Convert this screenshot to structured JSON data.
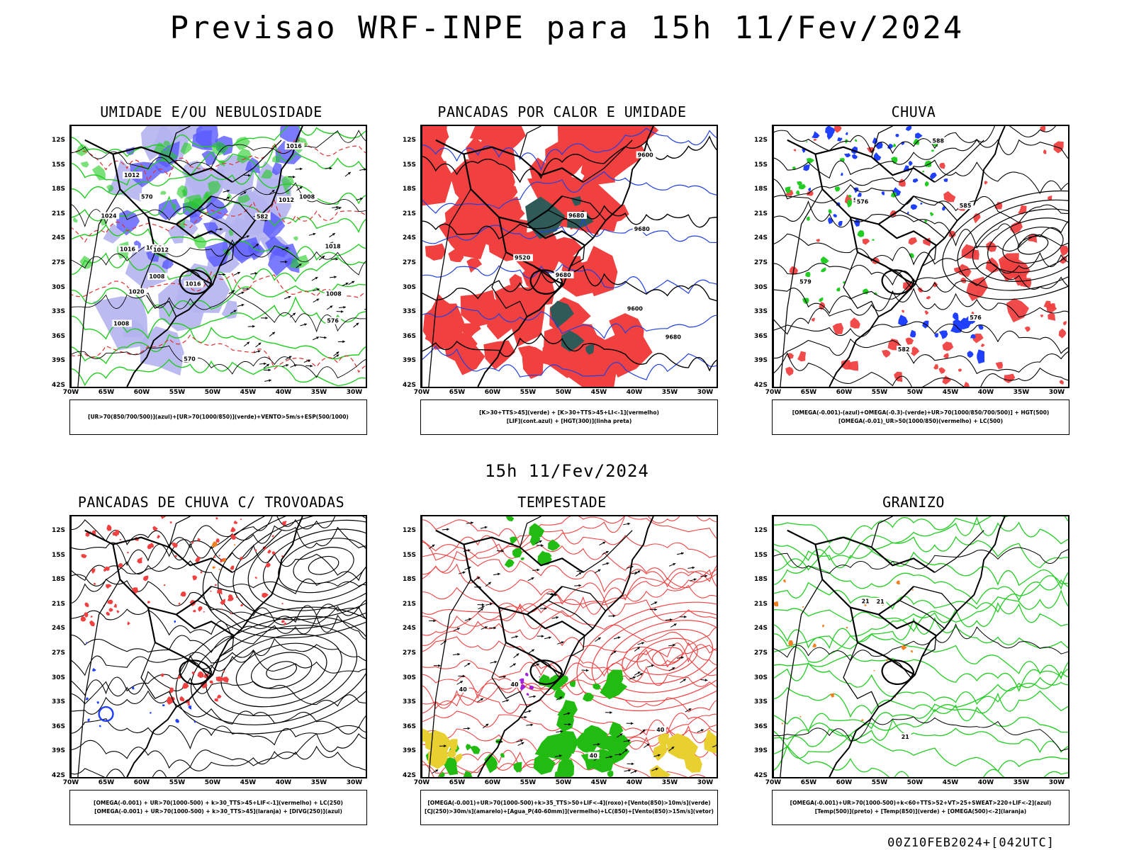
{
  "main_title": "Previsao WRF-INPE  para 15h 11/Fev/2024",
  "mid_title": "15h 11/Fev/2024",
  "footer": "00Z10FEB2024+[042UTC]",
  "lat_labels": [
    "12S",
    "15S",
    "18S",
    "21S",
    "24S",
    "27S",
    "30S",
    "33S",
    "36S",
    "39S",
    "42S"
  ],
  "lon_labels": [
    "70W",
    "65W",
    "60W",
    "55W",
    "50W",
    "45W",
    "40W",
    "35W",
    "30W"
  ],
  "panels": [
    {
      "id": "umidade",
      "title": "UMIDADE E/OU NEBULOSIDADE",
      "legend": [
        "[UR>70(850/700/500)](azul)+[UR>70(1000/850)](verde)+VENTO>5m/s+ESP(500/1000)"
      ],
      "contour_labels": [
        "1016",
        "1016",
        "1012",
        "1008",
        "1012",
        "1008",
        "1016",
        "1008",
        "1012",
        "1016",
        "1020",
        "1024",
        "1008",
        "1018",
        "570",
        "576",
        "582",
        "570"
      ],
      "colors": {
        "blue": "#5a5aff",
        "light_blue": "#b4b4f0",
        "green": "#22cc22",
        "red": "#e03030"
      }
    },
    {
      "id": "pancadas-calor",
      "title": "PANCADAS POR CALOR E UMIDADE",
      "legend": [
        "[K>30+TTS>45](verde) + [K>30+TTS>45+LI<-1](vermelho)",
        "[LIF](cont.azul) + [HGT(300)](linha preta)"
      ],
      "contour_labels": [
        "9680",
        "9680",
        "9680",
        "9600",
        "9680",
        "9600",
        "9520"
      ],
      "colors": {
        "red": "#f04040",
        "dark_teal": "#2f5a58",
        "blue": "#2040e0"
      }
    },
    {
      "id": "chuva",
      "title": "CHUVA",
      "legend": [
        "[OMEGA(-0.001)-(azul)+OMEGA(-0.3)-(verde)+UR>70(1000/850/700/500)] + HGT(500)",
        "[OMEGA(-0.01)_UR>50(1000/850)(vermelho) + LC(500)"
      ],
      "contour_labels": [
        "588",
        "588",
        "585",
        "582",
        "579",
        "576",
        "576"
      ],
      "colors": {
        "red": "#f04040",
        "blue": "#2040ff",
        "green": "#22cc22"
      }
    },
    {
      "id": "trovoadas",
      "title": "PANCADAS DE CHUVA C/ TROVOADAS",
      "legend": [
        "[OMEGA(-0.001) + UR>70(1000-500) + k>30_TTS>45+LIF<-1](vermelho) + LC(250)",
        "[OMEGA(-0.001) + UR>70(1000-500) + k>30_TTS>45](laranja) + [DIVG(250)](azul)"
      ],
      "contour_labels": [],
      "colors": {
        "red": "#f04040",
        "orange": "#f08020",
        "blue": "#2040ff"
      }
    },
    {
      "id": "tempestade",
      "title": "TEMPESTADE",
      "legend": [
        "[OMEGA(-0.001)+UR>70(1000-500)+k>35_TTS>50+LIF<-4](roxo)+[Vento(850)>10m/s](verde)",
        "[CJ(250)>30m/s](amarelo)+[Agua_P(40-60mm)](vermelho)+LC(850)+[Vento(850)>15m/s](vetor)"
      ],
      "contour_labels": [
        "40",
        "40",
        "40",
        "40"
      ],
      "colors": {
        "red": "#f04040",
        "green": "#22bb11",
        "yellow": "#e8d030",
        "purple": "#a020e0"
      }
    },
    {
      "id": "granizo",
      "title": "GRANIZO",
      "legend": [
        "[OMEGA(-0.001)+UR>70(1000-500)+k<60+TTS>52+VT>25+SWEAT>220+LIF<-2](azul)",
        "[Temp(500)](preto) + [Temp(850)](verde) + [OMEGA(500)<-2](laranja)"
      ],
      "contour_labels": [
        "21",
        "21",
        "21"
      ],
      "colors": {
        "green": "#22cc22",
        "orange": "#f08020"
      }
    }
  ]
}
